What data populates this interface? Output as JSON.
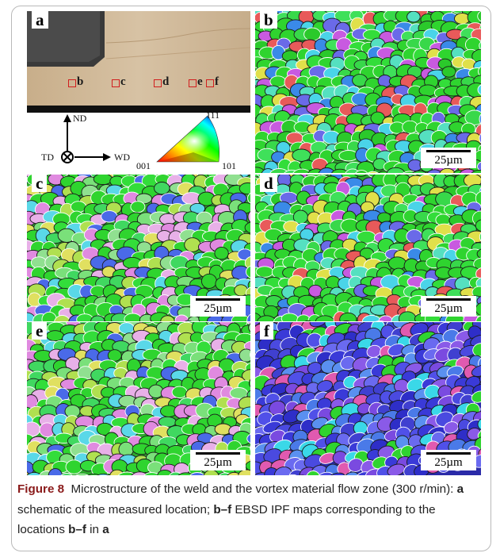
{
  "panels": {
    "a": {
      "label": "a",
      "markers": [
        "b",
        "c",
        "d",
        "e",
        "f"
      ],
      "axes": {
        "nd": "ND",
        "td": "TD",
        "wd": "WD"
      },
      "ipf_key": {
        "top": "111",
        "left": "001",
        "right": "101"
      }
    },
    "b": {
      "label": "b",
      "scale": "25µm",
      "palette": "green"
    },
    "c": {
      "label": "c",
      "scale": "25µm",
      "palette": "green-mixed"
    },
    "d": {
      "label": "d",
      "scale": "25µm",
      "palette": "green"
    },
    "e": {
      "label": "e",
      "scale": "25µm",
      "palette": "green-mixed"
    },
    "f": {
      "label": "f",
      "scale": "25µm",
      "palette": "blue"
    }
  },
  "colors": {
    "grain_green": "#2fd42f",
    "grain_blue": "#3a3ad8",
    "marker_red": "#d11e1e",
    "figure_label": "#8a1a1a"
  },
  "caption": {
    "figure": "Figure 8",
    "t1": "Microstructure of the weld and the vortex material flow zone (300 r/min): ",
    "b1": "a",
    "t2": " schematic of the measured location; ",
    "b2": "b–f",
    "t3": " EBSD IPF maps corresponding to the locations ",
    "b3": "b–f",
    "t4": " in ",
    "b4": "a"
  }
}
